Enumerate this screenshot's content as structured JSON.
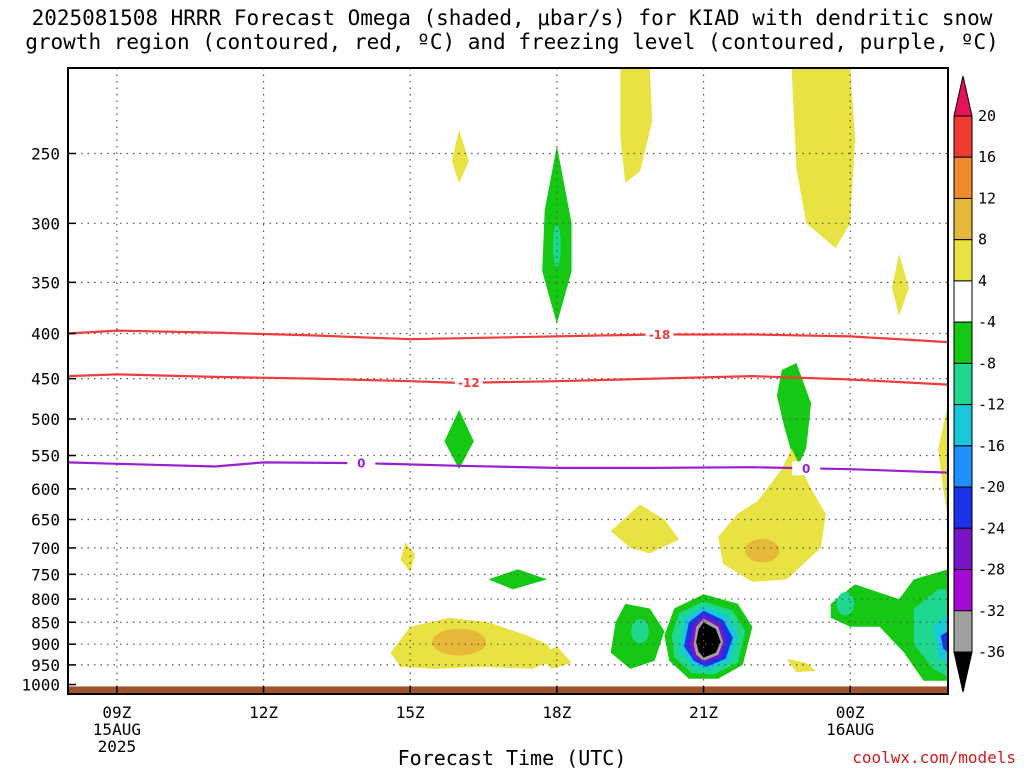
{
  "title": {
    "line1": "2025081508 HRRR Forecast Omega (shaded, μbar/s) for KIAD with dendritic snow",
    "line2": "growth region (contoured, red, ºC) and freezing level (contoured, purple, ºC)"
  },
  "credit": "coolwx.com/models",
  "chart_data": {
    "type": "heatmap",
    "title": "2025081508 HRRR Forecast Omega (shaded, μbar/s) for KIAD with dendritic snow growth region (contoured, red, ºC) and freezing level (contoured, purple, ºC)",
    "xlabel": "Forecast Time (UTC)",
    "ylabel": "",
    "x_ticks": [
      {
        "hour": 9,
        "label": "09Z",
        "sub1": "15AUG",
        "sub2": "2025"
      },
      {
        "hour": 12,
        "label": "12Z",
        "sub1": "",
        "sub2": ""
      },
      {
        "hour": 15,
        "label": "15Z",
        "sub1": "",
        "sub2": ""
      },
      {
        "hour": 18,
        "label": "18Z",
        "sub1": "",
        "sub2": ""
      },
      {
        "hour": 21,
        "label": "21Z",
        "sub1": "",
        "sub2": ""
      },
      {
        "hour": 24,
        "label": "00Z",
        "sub1": "16AUG",
        "sub2": ""
      }
    ],
    "xlim": [
      8,
      26
    ],
    "y_ticks": [
      250,
      300,
      350,
      400,
      450,
      500,
      550,
      600,
      650,
      700,
      750,
      800,
      850,
      900,
      950,
      1000
    ],
    "ylim": [
      1025,
      200
    ],
    "ground_pressure": 1005,
    "ground_color": "#a0522d",
    "colorbar": {
      "levels": [
        20,
        16,
        12,
        8,
        4,
        -4,
        -8,
        -12,
        -16,
        -20,
        -24,
        -28,
        -32,
        -36
      ],
      "colors": [
        "#e8115b",
        "#f03c2f",
        "#f08a2d",
        "#e7b93a",
        "#e8e243",
        "#ffffff",
        "#14c814",
        "#1fd890",
        "#18c8d8",
        "#1e90ff",
        "#1c32e6",
        "#7a14c8",
        "#a40ad4",
        "#a0a0a0",
        "#000000"
      ]
    },
    "contours": [
      {
        "name": "dgz_-18",
        "label": "-18",
        "color": "#f03c3c",
        "points": [
          [
            8,
            400
          ],
          [
            9,
            397
          ],
          [
            11,
            399
          ],
          [
            13,
            402
          ],
          [
            15,
            406
          ],
          [
            17,
            404
          ],
          [
            19,
            402
          ],
          [
            20,
            401
          ],
          [
            22,
            401
          ],
          [
            24,
            403
          ],
          [
            26,
            409
          ]
        ]
      },
      {
        "name": "dgz_-12",
        "label": "-12",
        "color": "#f03c3c",
        "points": [
          [
            8,
            447
          ],
          [
            9,
            445
          ],
          [
            11,
            448
          ],
          [
            13,
            450
          ],
          [
            15,
            453
          ],
          [
            16,
            455
          ],
          [
            18,
            453
          ],
          [
            20,
            450
          ],
          [
            22,
            447
          ],
          [
            24,
            451
          ],
          [
            26,
            457
          ]
        ]
      },
      {
        "name": "freezing_0",
        "label": "0",
        "color": "#9b1fd0",
        "points": [
          [
            8,
            560
          ],
          [
            9,
            562
          ],
          [
            11,
            566
          ],
          [
            12,
            560
          ],
          [
            14,
            561
          ],
          [
            16,
            565
          ],
          [
            18,
            568
          ],
          [
            20,
            568
          ],
          [
            22,
            567
          ],
          [
            24,
            570
          ],
          [
            26,
            575
          ]
        ]
      }
    ],
    "contour_label_positions": [
      {
        "label": "-18",
        "hour": 20.1
      },
      {
        "label": "-12",
        "hour": 16.2
      },
      {
        "label": "0",
        "hour": 14.0
      },
      {
        "label": "0",
        "hour": 23.1
      }
    ],
    "omega_regions": [
      {
        "value_range": [
          4,
          8
        ],
        "center": [
          19.5,
          240
        ],
        "note": "upper yellow plume"
      },
      {
        "value_range": [
          4,
          8
        ],
        "center": [
          23.3,
          250
        ],
        "note": "upper yellow plume"
      },
      {
        "value_range": [
          4,
          8
        ],
        "center": [
          16.0,
          255
        ],
        "note": "small yellow cell"
      },
      {
        "value_range": [
          4,
          8
        ],
        "center": [
          25.0,
          350
        ],
        "note": "small yellow cell"
      },
      {
        "value_range": [
          -8,
          -4
        ],
        "center": [
          18.0,
          320
        ],
        "note": "green upper cell"
      },
      {
        "value_range": [
          -8,
          -4
        ],
        "center": [
          16.0,
          530
        ],
        "note": "green cell"
      },
      {
        "value_range": [
          -8,
          -4
        ],
        "center": [
          22.9,
          480
        ],
        "note": "green cell"
      },
      {
        "value_range": [
          4,
          8
        ],
        "center": [
          22.5,
          650
        ],
        "note": "yellow lower region"
      },
      {
        "value_range": [
          8,
          12
        ],
        "center": [
          22.2,
          700
        ],
        "note": "orange core"
      },
      {
        "value_range": [
          4,
          8
        ],
        "center": [
          19.8,
          670
        ],
        "note": "yellow cell"
      },
      {
        "value_range": [
          4,
          8
        ],
        "center": [
          16.0,
          890
        ],
        "note": "yellow low-level"
      },
      {
        "value_range": [
          8,
          12
        ],
        "center": [
          16.0,
          890
        ],
        "note": "orange core"
      },
      {
        "value_range": [
          -36,
          -32
        ],
        "center": [
          21.0,
          880
        ],
        "note": "intense upward motion core"
      },
      {
        "value_range": [
          -16,
          -8
        ],
        "center": [
          19.0,
          860
        ],
        "note": "green/teal cell"
      },
      {
        "value_range": [
          -16,
          -8
        ],
        "center": [
          24.8,
          850
        ],
        "note": "green/teal cell"
      }
    ]
  }
}
